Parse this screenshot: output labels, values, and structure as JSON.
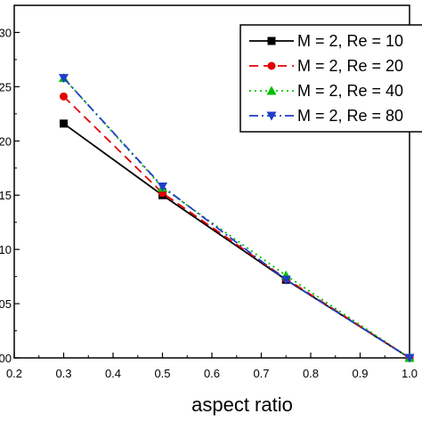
{
  "chart_data": {
    "type": "line",
    "title": "",
    "xlabel": "aspect ratio",
    "ylabel": "",
    "xlim": [
      0.2,
      1.0
    ],
    "ylim": [
      0.0,
      0.325
    ],
    "x_ticks": [
      "0.2",
      "0.3",
      "0.4",
      "0.5",
      "0.6",
      "0.7",
      "0.8",
      "0.9",
      "1.0"
    ],
    "y_ticks": [
      "00",
      "05",
      "10",
      "15",
      "20",
      "25",
      "30"
    ],
    "grid": false,
    "legend_position": "top-right",
    "series": [
      {
        "name": "M = 2, Re = 10",
        "color": "#000000",
        "dash": "solid",
        "marker": "square",
        "x": [
          0.3,
          0.5,
          0.75,
          1.0
        ],
        "y": [
          0.216,
          0.15,
          0.072,
          0.0
        ]
      },
      {
        "name": "M = 2, Re = 20",
        "color": "#e00000",
        "dash": "dash",
        "marker": "circle",
        "x": [
          0.3,
          0.5,
          0.75,
          1.0
        ],
        "y": [
          0.241,
          0.152,
          0.073,
          0.0
        ]
      },
      {
        "name": "M = 2, Re = 40",
        "color": "#00c000",
        "dash": "dot",
        "marker": "triangle-up",
        "x": [
          0.3,
          0.5,
          0.75,
          1.0
        ],
        "y": [
          0.258,
          0.157,
          0.076,
          0.0
        ]
      },
      {
        "name": "M = 2, Re = 80",
        "color": "#1f3fc8",
        "dash": "dashdot",
        "marker": "triangle-down",
        "x": [
          0.3,
          0.5,
          0.75,
          1.0
        ],
        "y": [
          0.258,
          0.158,
          0.072,
          0.0
        ]
      }
    ]
  }
}
